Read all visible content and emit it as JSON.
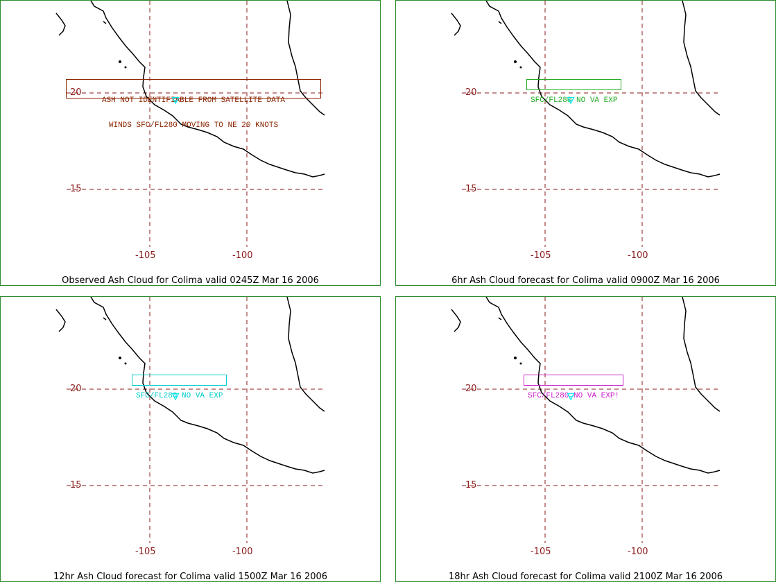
{
  "colors": {
    "frame": "#2e8b2e",
    "gridline": "#8b1a1a",
    "coast": "#000000",
    "volcano_marker": "#00e5ee"
  },
  "volcano_icon": "volcano-marker-icon",
  "grid": {
    "lat_labels": [
      "20",
      "15"
    ],
    "lon_labels": [
      "-105",
      "-100"
    ]
  },
  "panels": [
    {
      "caption": "Observed Ash Cloud for Colima valid 0245Z Mar 16 2006",
      "advisory_lines": [
        "ASH NOT IDENTIFIABLE FROM SATELLITE DATA",
        "WINDS SFC/FL280 MOVING TO NE 20 KNOTS"
      ],
      "advisory_color": "#8b2500"
    },
    {
      "caption": "6hr Ash Cloud forecast for Colima valid 0900Z Mar 16 2006",
      "advisory_lines": [
        "SFC/FL280 NO VA EXP"
      ],
      "advisory_color": "#22aa22"
    },
    {
      "caption": "12hr Ash Cloud forecast for Colima valid 1500Z Mar 16 2006",
      "advisory_lines": [
        "SFC/FL280 NO VA EXP"
      ],
      "advisory_color": "#00cccc"
    },
    {
      "caption": "18hr Ash Cloud forecast for Colima valid 2100Z Mar 16 2006",
      "advisory_lines": [
        "SFC/FL280 NO VA EXP!"
      ],
      "advisory_color": "#cc22cc"
    }
  ]
}
